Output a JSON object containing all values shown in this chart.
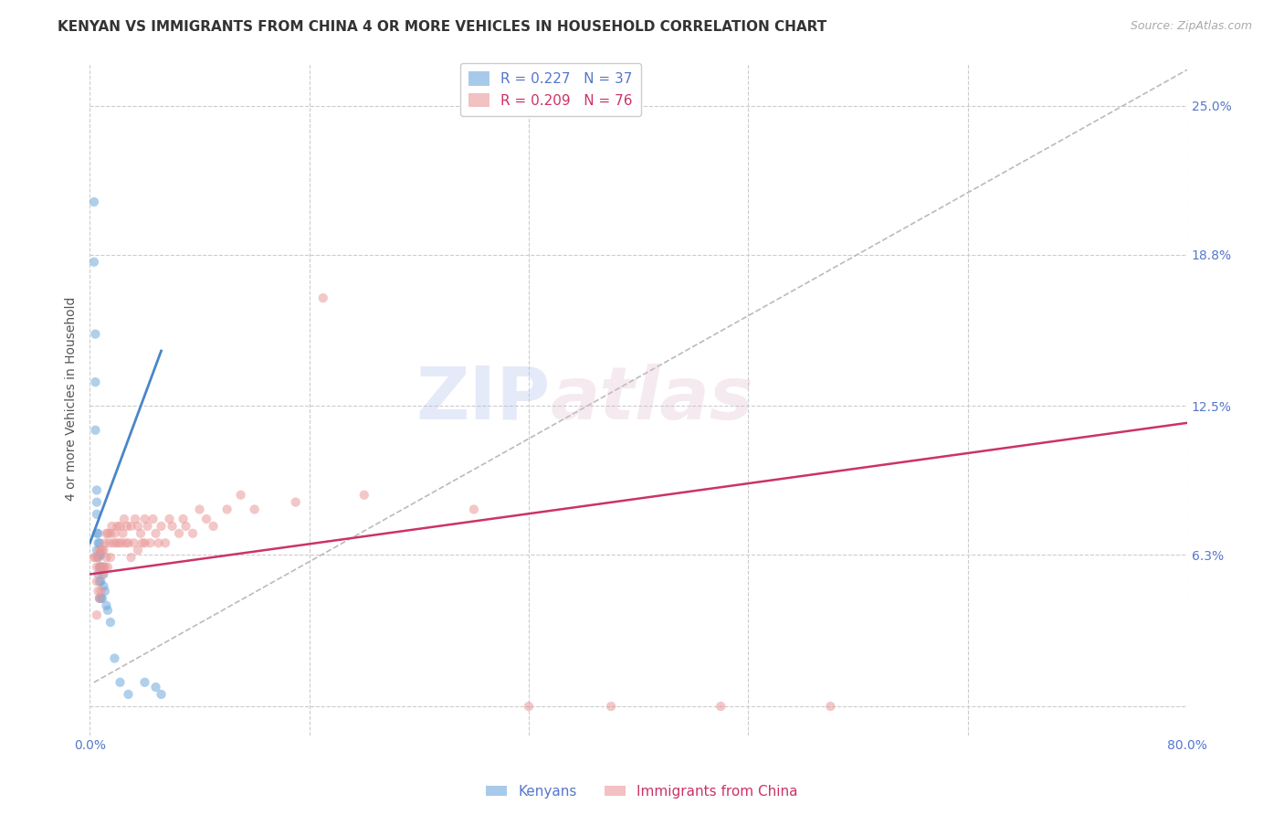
{
  "title": "KENYAN VS IMMIGRANTS FROM CHINA 4 OR MORE VEHICLES IN HOUSEHOLD CORRELATION CHART",
  "source": "Source: ZipAtlas.com",
  "ylabel": "4 or more Vehicles in Household",
  "x_min": 0.0,
  "x_max": 0.8,
  "y_min": -0.012,
  "y_max": 0.268,
  "x_ticks": [
    0.0,
    0.16,
    0.32,
    0.48,
    0.64,
    0.8
  ],
  "x_tick_labels": [
    "0.0%",
    "",
    "",
    "",
    "",
    "80.0%"
  ],
  "y_ticks": [
    0.0,
    0.063,
    0.125,
    0.188,
    0.25
  ],
  "y_tick_labels_right": [
    "",
    "6.3%",
    "12.5%",
    "18.8%",
    "25.0%"
  ],
  "background_color": "#ffffff",
  "grid_color": "#cccccc",
  "watermark_zip": "ZIP",
  "watermark_atlas": "atlas",
  "legend_entries": [
    {
      "label_r": "R = 0.227",
      "label_n": "N = 37",
      "color": "#6fa8dc"
    },
    {
      "label_r": "R = 0.209",
      "label_n": "N = 76",
      "color": "#ea9999"
    }
  ],
  "kenyans_x": [
    0.003,
    0.003,
    0.004,
    0.004,
    0.004,
    0.005,
    0.005,
    0.005,
    0.005,
    0.005,
    0.006,
    0.006,
    0.006,
    0.006,
    0.007,
    0.007,
    0.007,
    0.007,
    0.007,
    0.008,
    0.008,
    0.008,
    0.008,
    0.009,
    0.009,
    0.01,
    0.01,
    0.011,
    0.012,
    0.013,
    0.015,
    0.018,
    0.022,
    0.028,
    0.04,
    0.048,
    0.052
  ],
  "kenyans_y": [
    0.21,
    0.185,
    0.155,
    0.135,
    0.115,
    0.09,
    0.085,
    0.08,
    0.072,
    0.065,
    0.072,
    0.068,
    0.062,
    0.055,
    0.068,
    0.063,
    0.058,
    0.052,
    0.045,
    0.063,
    0.058,
    0.052,
    0.045,
    0.058,
    0.045,
    0.055,
    0.05,
    0.048,
    0.042,
    0.04,
    0.035,
    0.02,
    0.01,
    0.005,
    0.01,
    0.008,
    0.005
  ],
  "china_x": [
    0.003,
    0.004,
    0.005,
    0.005,
    0.005,
    0.006,
    0.006,
    0.007,
    0.007,
    0.007,
    0.008,
    0.008,
    0.008,
    0.009,
    0.009,
    0.01,
    0.01,
    0.011,
    0.011,
    0.012,
    0.012,
    0.013,
    0.013,
    0.014,
    0.015,
    0.015,
    0.016,
    0.017,
    0.018,
    0.019,
    0.02,
    0.021,
    0.022,
    0.023,
    0.024,
    0.025,
    0.026,
    0.027,
    0.028,
    0.03,
    0.03,
    0.032,
    0.033,
    0.035,
    0.035,
    0.037,
    0.038,
    0.04,
    0.04,
    0.042,
    0.044,
    0.046,
    0.048,
    0.05,
    0.052,
    0.055,
    0.058,
    0.06,
    0.065,
    0.068,
    0.07,
    0.075,
    0.08,
    0.085,
    0.09,
    0.1,
    0.11,
    0.12,
    0.15,
    0.17,
    0.2,
    0.28,
    0.32,
    0.38,
    0.46,
    0.54
  ],
  "china_y": [
    0.062,
    0.062,
    0.058,
    0.052,
    0.038,
    0.062,
    0.048,
    0.065,
    0.058,
    0.045,
    0.065,
    0.058,
    0.048,
    0.065,
    0.055,
    0.065,
    0.058,
    0.068,
    0.058,
    0.072,
    0.062,
    0.072,
    0.058,
    0.068,
    0.072,
    0.062,
    0.075,
    0.068,
    0.072,
    0.068,
    0.075,
    0.068,
    0.075,
    0.068,
    0.072,
    0.078,
    0.068,
    0.075,
    0.068,
    0.075,
    0.062,
    0.068,
    0.078,
    0.075,
    0.065,
    0.072,
    0.068,
    0.078,
    0.068,
    0.075,
    0.068,
    0.078,
    0.072,
    0.068,
    0.075,
    0.068,
    0.078,
    0.075,
    0.072,
    0.078,
    0.075,
    0.072,
    0.082,
    0.078,
    0.075,
    0.082,
    0.088,
    0.082,
    0.085,
    0.17,
    0.088,
    0.082,
    0.0,
    0.0,
    0.0,
    0.0
  ],
  "kenyan_line_x": [
    0.0,
    0.052
  ],
  "kenyan_line_y": [
    0.068,
    0.148
  ],
  "china_line_x": [
    0.0,
    0.8
  ],
  "china_line_y": [
    0.055,
    0.118
  ],
  "diag_line_x": [
    0.003,
    0.8
  ],
  "diag_line_y": [
    0.01,
    0.265
  ],
  "kenyan_color": "#6fa8dc",
  "china_color": "#ea9999",
  "kenyan_line_color": "#4a86c8",
  "china_line_color": "#cc3366",
  "diag_color": "#bbbbbb",
  "title_fontsize": 11,
  "source_fontsize": 9,
  "ylabel_fontsize": 10,
  "tick_fontsize": 10,
  "legend_fontsize": 11
}
